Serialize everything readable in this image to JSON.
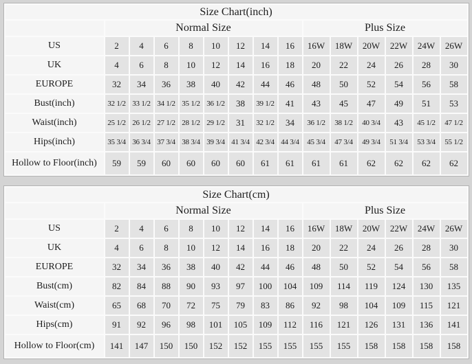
{
  "page": {
    "background_color": "#d4d4d4",
    "label_cell_color": "#f5f5f5",
    "value_cell_color": "#e3e3e3",
    "border_color": "#b3b3b3",
    "text_color": "#1c1c1c"
  },
  "tables": [
    {
      "id": "inch",
      "title": "Size Chart(inch)",
      "normal_header": "Normal Size",
      "plus_header": "Plus Size",
      "normal_col_count": 8,
      "plus_col_count": 6,
      "rows": [
        {
          "label": "US",
          "values": [
            "2",
            "4",
            "6",
            "8",
            "10",
            "12",
            "14",
            "16",
            "16W",
            "18W",
            "20W",
            "22W",
            "24W",
            "26W"
          ]
        },
        {
          "label": "UK",
          "values": [
            "4",
            "6",
            "8",
            "10",
            "12",
            "14",
            "16",
            "18",
            "20",
            "22",
            "24",
            "26",
            "28",
            "30"
          ]
        },
        {
          "label": "EUROPE",
          "values": [
            "32",
            "34",
            "36",
            "38",
            "40",
            "42",
            "44",
            "46",
            "48",
            "50",
            "52",
            "54",
            "56",
            "58"
          ]
        },
        {
          "label": "Bust(inch)",
          "values": [
            "32 1/2",
            "33 1/2",
            "34 1/2",
            "35 1/2",
            "36 1/2",
            "38",
            "39 1/2",
            "41",
            "43",
            "45",
            "47",
            "49",
            "51",
            "53"
          ]
        },
        {
          "label": "Waist(inch)",
          "values": [
            "25 1/2",
            "26 1/2",
            "27 1/2",
            "28 1/2",
            "29 1/2",
            "31",
            "32 1/2",
            "34",
            "36 1/2",
            "38 1/2",
            "40 3/4",
            "43",
            "45 1/2",
            "47 1/2"
          ]
        },
        {
          "label": "Hips(inch)",
          "values": [
            "35 3/4",
            "36 3/4",
            "37 3/4",
            "38 3/4",
            "39 3/4",
            "41 3/4",
            "42 3/4",
            "44 3/4",
            "45 3/4",
            "47 3/4",
            "49 3/4",
            "51 3/4",
            "53 3/4",
            "55 1/2"
          ]
        },
        {
          "label": "Hollow to Floor(inch)",
          "values": [
            "59",
            "59",
            "60",
            "60",
            "60",
            "60",
            "61",
            "61",
            "61",
            "61",
            "62",
            "62",
            "62",
            "62"
          ]
        }
      ]
    },
    {
      "id": "cm",
      "title": "Size Chart(cm)",
      "normal_header": "Normal Size",
      "plus_header": "Plus Size",
      "normal_col_count": 8,
      "plus_col_count": 6,
      "rows": [
        {
          "label": "US",
          "values": [
            "2",
            "4",
            "6",
            "8",
            "10",
            "12",
            "14",
            "16",
            "16W",
            "18W",
            "20W",
            "22W",
            "24W",
            "26W"
          ]
        },
        {
          "label": "UK",
          "values": [
            "4",
            "6",
            "8",
            "10",
            "12",
            "14",
            "16",
            "18",
            "20",
            "22",
            "24",
            "26",
            "28",
            "30"
          ]
        },
        {
          "label": "EUROPE",
          "values": [
            "32",
            "34",
            "36",
            "38",
            "40",
            "42",
            "44",
            "46",
            "48",
            "50",
            "52",
            "54",
            "56",
            "58"
          ]
        },
        {
          "label": "Bust(cm)",
          "values": [
            "82",
            "84",
            "88",
            "90",
            "93",
            "97",
            "100",
            "104",
            "109",
            "114",
            "119",
            "124",
            "130",
            "135"
          ]
        },
        {
          "label": "Waist(cm)",
          "values": [
            "65",
            "68",
            "70",
            "72",
            "75",
            "79",
            "83",
            "86",
            "92",
            "98",
            "104",
            "109",
            "115",
            "121"
          ]
        },
        {
          "label": "Hips(cm)",
          "values": [
            "91",
            "92",
            "96",
            "98",
            "101",
            "105",
            "109",
            "112",
            "116",
            "121",
            "126",
            "131",
            "136",
            "141"
          ]
        },
        {
          "label": "Hollow to Floor(cm)",
          "values": [
            "141",
            "147",
            "150",
            "150",
            "152",
            "152",
            "155",
            "155",
            "155",
            "155",
            "158",
            "158",
            "158",
            "158"
          ]
        }
      ]
    }
  ]
}
